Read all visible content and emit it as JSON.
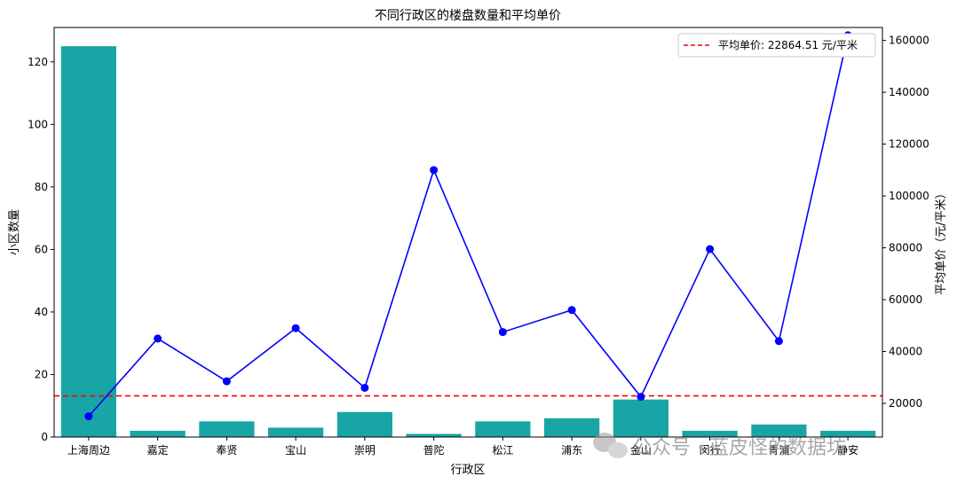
{
  "chart_data": {
    "type": "bar",
    "title": "不同行政区的楼盘数量和平均单价",
    "xlabel": "行政区",
    "ylabel": "小区数量",
    "y2label": "平均单价（元/平米）",
    "categories": [
      "上海周边",
      "嘉定",
      "奉贤",
      "宝山",
      "崇明",
      "普陀",
      "松江",
      "浦东",
      "金山",
      "闵行",
      "青浦",
      "静安"
    ],
    "series": [
      {
        "axis": "left",
        "kind": "bar",
        "color": "#17a5a5",
        "values": [
          125,
          2,
          5,
          3,
          8,
          1,
          5,
          6,
          12,
          2,
          4,
          2
        ]
      },
      {
        "axis": "right",
        "kind": "line",
        "color": "#0000ff",
        "values": [
          15000,
          45000,
          28500,
          49000,
          26000,
          110000,
          47500,
          56000,
          22500,
          79500,
          44000,
          162000
        ]
      }
    ],
    "ylim": [
      0,
      131
    ],
    "y2lim": [
      7000,
      165000
    ],
    "yticks": [
      0,
      20,
      40,
      60,
      80,
      100,
      120
    ],
    "y2ticks": [
      20000,
      40000,
      60000,
      80000,
      100000,
      120000,
      140000,
      160000
    ],
    "reference_line": {
      "axis": "right",
      "value": 22864.51,
      "color": "#ff0000",
      "style": "dashed",
      "label": "平均单价: 22864.51 元/平米"
    },
    "legend_position": "top-right",
    "grid": false
  },
  "watermark": {
    "text": "公众号 · 蓝皮怪的数据坊",
    "icon": "wechat-icon"
  }
}
